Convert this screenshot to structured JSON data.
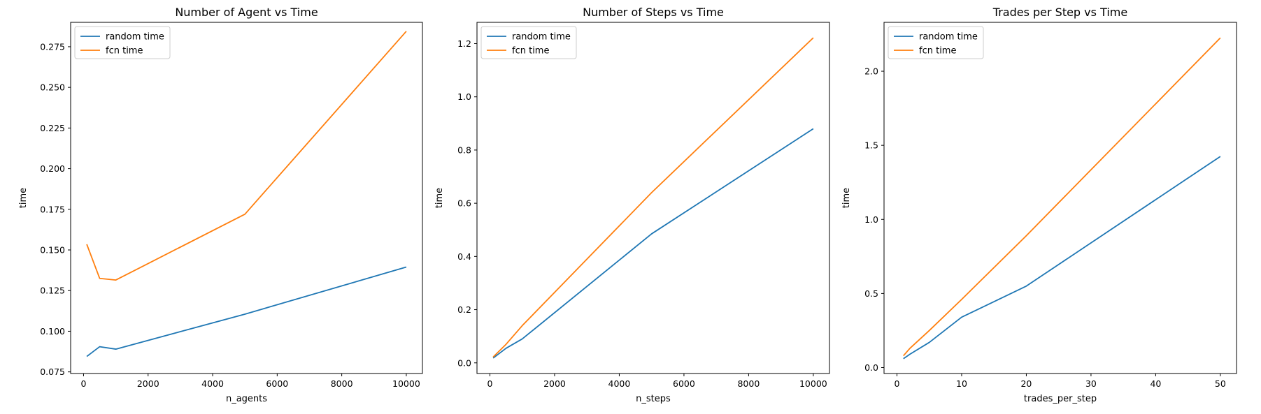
{
  "colors": {
    "series_1": "#1f77b4",
    "series_2": "#ff7f0e",
    "axes": "#000000",
    "legend_border": "#cccccc"
  },
  "chart_data": [
    {
      "type": "line",
      "title": "Number of Agent vs Time",
      "xlabel": "n_agents",
      "ylabel": "time",
      "xlim": [
        -400,
        10500
      ],
      "ylim": [
        0.074,
        0.29
      ],
      "xticks": [
        0,
        2000,
        4000,
        6000,
        8000,
        10000
      ],
      "yticks": [
        0.075,
        0.1,
        0.125,
        0.15,
        0.175,
        0.2,
        0.225,
        0.25,
        0.275
      ],
      "xtick_labels": [
        "0",
        "2000",
        "4000",
        "6000",
        "8000",
        "10000"
      ],
      "ytick_labels": [
        "0.075",
        "0.100",
        "0.125",
        "0.150",
        "0.175",
        "0.200",
        "0.225",
        "0.250",
        "0.275"
      ],
      "grid": false,
      "legend": "top-left",
      "x": [
        100,
        500,
        1000,
        5000,
        10000
      ],
      "series": [
        {
          "name": "random time",
          "color": "#1f77b4",
          "values": [
            0.0845,
            0.0905,
            0.089,
            0.1105,
            0.1395
          ]
        },
        {
          "name": "fcn time",
          "color": "#ff7f0e",
          "values": [
            0.1535,
            0.1325,
            0.1315,
            0.172,
            0.2845
          ]
        }
      ]
    },
    {
      "type": "line",
      "title": "Number of Steps vs Time",
      "xlabel": "n_steps",
      "ylabel": "time",
      "xlim": [
        -400,
        10500
      ],
      "ylim": [
        -0.04,
        1.28
      ],
      "xticks": [
        0,
        2000,
        4000,
        6000,
        8000,
        10000
      ],
      "yticks": [
        0.0,
        0.2,
        0.4,
        0.6,
        0.8,
        1.0,
        1.2
      ],
      "xtick_labels": [
        "0",
        "2000",
        "4000",
        "6000",
        "8000",
        "10000"
      ],
      "ytick_labels": [
        "0.0",
        "0.2",
        "0.4",
        "0.6",
        "0.8",
        "1.0",
        "1.2"
      ],
      "grid": false,
      "legend": "top-left",
      "x": [
        100,
        500,
        1000,
        5000,
        10000
      ],
      "series": [
        {
          "name": "random time",
          "color": "#1f77b4",
          "values": [
            0.018,
            0.055,
            0.09,
            0.485,
            0.88
          ]
        },
        {
          "name": "fcn time",
          "color": "#ff7f0e",
          "values": [
            0.022,
            0.07,
            0.14,
            0.64,
            1.222
          ]
        }
      ]
    },
    {
      "type": "line",
      "title": "Trades per Step vs Time",
      "xlabel": "trades_per_step",
      "ylabel": "time",
      "xlim": [
        -2,
        52.5
      ],
      "ylim": [
        -0.04,
        2.33
      ],
      "xticks": [
        0,
        10,
        20,
        30,
        40,
        50
      ],
      "yticks": [
        0.0,
        0.5,
        1.0,
        1.5,
        2.0
      ],
      "xtick_labels": [
        "0",
        "10",
        "20",
        "30",
        "40",
        "50"
      ],
      "ytick_labels": [
        "0.0",
        "0.5",
        "1.0",
        "1.5",
        "2.0"
      ],
      "grid": false,
      "legend": "top-left",
      "x": [
        1,
        2,
        5,
        10,
        20,
        50
      ],
      "series": [
        {
          "name": "random time",
          "color": "#1f77b4",
          "values": [
            0.06,
            0.09,
            0.17,
            0.34,
            0.55,
            1.425
          ]
        },
        {
          "name": "fcn time",
          "color": "#ff7f0e",
          "values": [
            0.08,
            0.13,
            0.25,
            0.46,
            0.89,
            2.225
          ]
        }
      ]
    }
  ]
}
